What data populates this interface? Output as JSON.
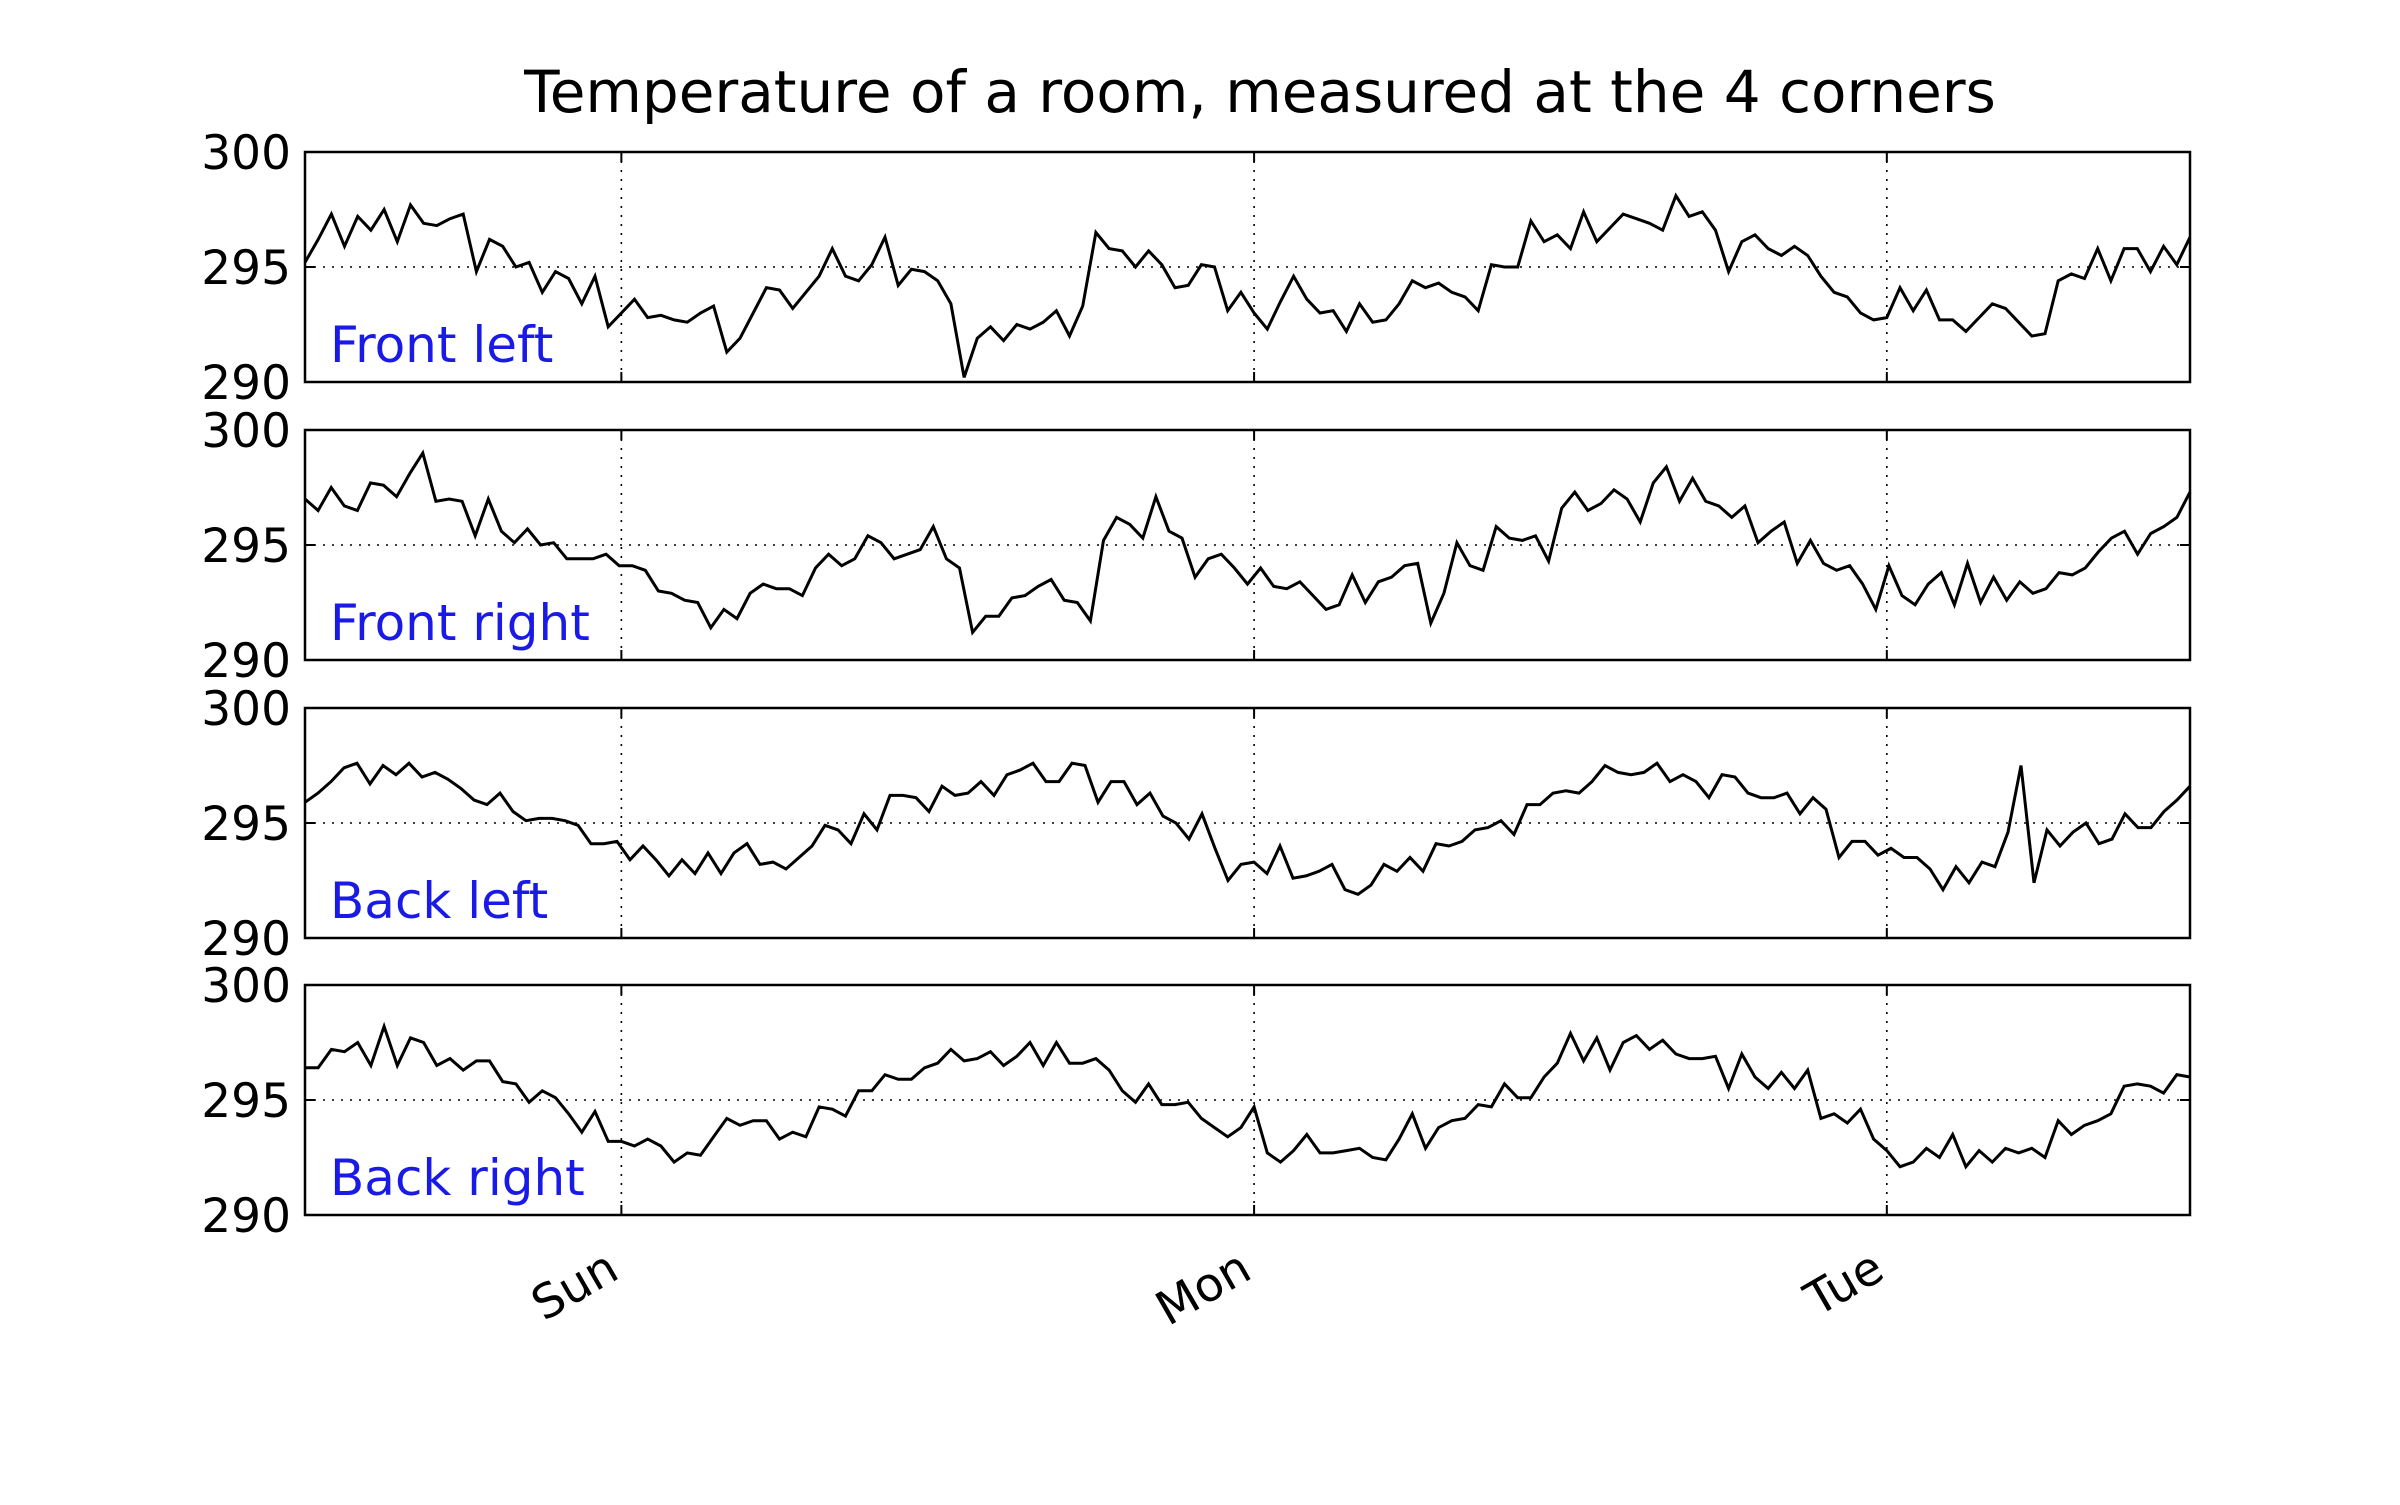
{
  "chart_data": {
    "type": "line",
    "title": "Temperature of a room, measured at the 4 corners",
    "ylim": [
      290,
      300
    ],
    "yticks": [
      290,
      295,
      300
    ],
    "x_labels": [
      "Sun",
      "Mon",
      "Tue"
    ],
    "x_label_positions": [
      12,
      36,
      60
    ],
    "xlim": [
      0,
      71.5
    ],
    "grid": true,
    "line_color": "#000000",
    "label_color": "#1a1ae6",
    "series": [
      {
        "name": "Front left",
        "values": [
          295.2,
          296.2,
          297.3,
          295.9,
          297.2,
          296.6,
          297.5,
          296.1,
          297.7,
          296.9,
          296.8,
          297.1,
          297.3,
          294.8,
          296.2,
          295.9,
          295.0,
          295.2,
          293.9,
          294.8,
          294.5,
          293.4,
          294.6,
          292.4,
          293.0,
          293.6,
          292.8,
          292.9,
          292.7,
          292.6,
          293.0,
          293.3,
          291.3,
          291.9,
          293.0,
          294.1,
          294.0,
          293.2,
          293.9,
          294.6,
          295.8,
          294.6,
          294.4,
          295.1,
          296.3,
          294.2,
          294.9,
          294.8,
          294.4,
          293.4,
          290.2,
          291.9,
          292.4,
          291.8,
          292.5,
          292.3,
          292.6,
          293.1,
          292.0,
          293.3,
          296.5,
          295.8,
          295.7,
          295.0,
          295.7,
          295.1,
          294.1,
          294.2,
          295.1,
          295.0,
          293.1,
          293.9,
          293.0,
          292.3,
          293.5,
          294.6,
          293.6,
          293.0,
          293.1,
          292.2,
          293.4,
          292.6,
          292.7,
          293.4,
          294.4,
          294.1,
          294.3,
          293.9,
          293.7,
          293.1,
          295.1,
          295.0,
          295.0,
          297.0,
          296.1,
          296.4,
          295.8,
          297.4,
          296.1,
          296.7,
          297.3,
          297.1,
          296.9,
          296.6,
          298.1,
          297.2,
          297.4,
          296.6,
          294.8,
          296.1,
          296.4,
          295.8,
          295.5,
          295.9,
          295.5,
          294.6,
          293.9,
          293.7,
          293.0,
          292.7,
          292.8,
          294.1,
          293.1,
          294.0,
          292.7,
          292.7,
          292.2,
          292.8,
          293.4,
          293.2,
          292.6,
          292.0,
          292.1,
          294.4,
          294.7,
          294.5,
          295.8,
          294.4,
          295.8,
          295.8,
          294.8,
          295.9,
          295.1,
          296.3
        ]
      },
      {
        "name": "Front right",
        "values": [
          297.0,
          296.5,
          297.5,
          296.7,
          296.5,
          297.7,
          297.6,
          297.1,
          298.1,
          299.0,
          296.9,
          297.0,
          296.9,
          295.4,
          297.0,
          295.6,
          295.1,
          295.7,
          295.0,
          295.1,
          294.4,
          294.4,
          294.4,
          294.6,
          294.1,
          294.1,
          293.9,
          293.0,
          292.9,
          292.6,
          292.5,
          291.4,
          292.2,
          291.8,
          292.9,
          293.3,
          293.1,
          293.1,
          292.8,
          294.0,
          294.6,
          294.1,
          294.4,
          295.4,
          295.1,
          294.4,
          294.6,
          294.8,
          295.8,
          294.4,
          294.0,
          291.2,
          291.9,
          291.9,
          292.7,
          292.8,
          293.2,
          293.5,
          292.6,
          292.5,
          291.7,
          295.2,
          296.2,
          295.9,
          295.3,
          297.1,
          295.6,
          295.3,
          293.6,
          294.4,
          294.6,
          294.0,
          293.3,
          294.0,
          293.2,
          293.1,
          293.4,
          292.8,
          292.2,
          292.4,
          293.7,
          292.5,
          293.4,
          293.6,
          294.1,
          294.2,
          291.6,
          292.9,
          295.1,
          294.1,
          293.9,
          295.8,
          295.3,
          295.2,
          295.4,
          294.3,
          296.6,
          297.3,
          296.5,
          296.8,
          297.4,
          297.0,
          296.0,
          297.7,
          298.4,
          296.9,
          297.9,
          296.9,
          296.7,
          296.2,
          296.7,
          295.1,
          295.6,
          296.0,
          294.2,
          295.2,
          294.2,
          293.9,
          294.1,
          293.3,
          292.2,
          294.1,
          292.8,
          292.4,
          293.3,
          293.8,
          292.4,
          294.2,
          292.5,
          293.6,
          292.6,
          293.4,
          292.9,
          293.1,
          293.8,
          293.7,
          294.0,
          294.7,
          295.3,
          295.6,
          294.6,
          295.5,
          295.8,
          296.2,
          297.3
        ]
      },
      {
        "name": "Back left",
        "values": [
          295.9,
          296.3,
          296.8,
          297.4,
          297.6,
          296.7,
          297.5,
          297.1,
          297.6,
          297.0,
          297.2,
          296.9,
          296.5,
          296.0,
          295.8,
          296.3,
          295.5,
          295.1,
          295.2,
          295.2,
          295.1,
          294.9,
          294.1,
          294.1,
          294.2,
          293.4,
          294.0,
          293.4,
          292.7,
          293.4,
          292.8,
          293.7,
          292.8,
          293.7,
          294.1,
          293.2,
          293.3,
          293.0,
          293.5,
          294.0,
          294.9,
          294.7,
          294.1,
          295.4,
          294.7,
          296.2,
          296.2,
          296.1,
          295.5,
          296.6,
          296.2,
          296.3,
          296.8,
          296.2,
          297.1,
          297.3,
          297.6,
          296.8,
          296.8,
          297.6,
          297.5,
          295.9,
          296.8,
          296.8,
          295.8,
          296.3,
          295.3,
          295.0,
          294.3,
          295.4,
          293.9,
          292.5,
          293.2,
          293.3,
          292.8,
          294.0,
          292.6,
          292.7,
          292.9,
          293.2,
          292.1,
          291.9,
          292.3,
          293.2,
          292.9,
          293.5,
          292.9,
          294.1,
          294.0,
          294.2,
          294.7,
          294.8,
          295.1,
          294.5,
          295.8,
          295.8,
          296.3,
          296.4,
          296.3,
          296.8,
          297.5,
          297.2,
          297.1,
          297.2,
          297.6,
          296.8,
          297.1,
          296.8,
          296.1,
          297.1,
          297.0,
          296.3,
          296.1,
          296.1,
          296.3,
          295.4,
          296.1,
          295.6,
          293.5,
          294.2,
          294.2,
          293.6,
          293.9,
          293.5,
          293.5,
          293.0,
          292.1,
          293.1,
          292.4,
          293.3,
          293.1,
          294.6,
          297.5,
          292.4,
          294.7,
          294.0,
          294.6,
          295.0,
          294.1,
          294.3,
          295.4,
          294.8,
          294.8,
          295.5,
          296.0,
          296.6
        ]
      },
      {
        "name": "Back right",
        "values": [
          296.4,
          296.4,
          297.2,
          297.1,
          297.5,
          296.5,
          298.2,
          296.5,
          297.7,
          297.5,
          296.5,
          296.8,
          296.3,
          296.7,
          296.7,
          295.8,
          295.7,
          294.9,
          295.4,
          295.1,
          294.4,
          293.6,
          294.5,
          293.2,
          293.2,
          293.0,
          293.3,
          293.0,
          292.3,
          292.7,
          292.6,
          293.4,
          294.2,
          293.9,
          294.1,
          294.1,
          293.3,
          293.6,
          293.4,
          294.7,
          294.6,
          294.3,
          295.4,
          295.4,
          296.1,
          295.9,
          295.9,
          296.4,
          296.6,
          297.2,
          296.7,
          296.8,
          297.1,
          296.5,
          296.9,
          297.5,
          296.5,
          297.5,
          296.6,
          296.6,
          296.8,
          296.3,
          295.4,
          294.9,
          295.7,
          294.8,
          294.8,
          294.9,
          294.2,
          293.8,
          293.4,
          293.8,
          294.7,
          292.7,
          292.3,
          292.8,
          293.5,
          292.7,
          292.7,
          292.8,
          292.9,
          292.5,
          292.4,
          293.3,
          294.4,
          292.9,
          293.8,
          294.1,
          294.2,
          294.8,
          294.7,
          295.7,
          295.1,
          295.1,
          296.0,
          296.6,
          297.9,
          296.7,
          297.7,
          296.3,
          297.5,
          297.8,
          297.2,
          297.6,
          297.0,
          296.8,
          296.8,
          296.9,
          295.5,
          297.0,
          296.0,
          295.5,
          296.2,
          295.5,
          296.3,
          294.2,
          294.4,
          294.0,
          294.6,
          293.3,
          292.8,
          292.1,
          292.3,
          292.9,
          292.5,
          293.5,
          292.1,
          292.8,
          292.3,
          292.9,
          292.7,
          292.9,
          292.5,
          294.1,
          293.5,
          293.9,
          294.1,
          294.4,
          295.6,
          295.7,
          295.6,
          295.3,
          296.1,
          296.0
        ]
      }
    ]
  }
}
